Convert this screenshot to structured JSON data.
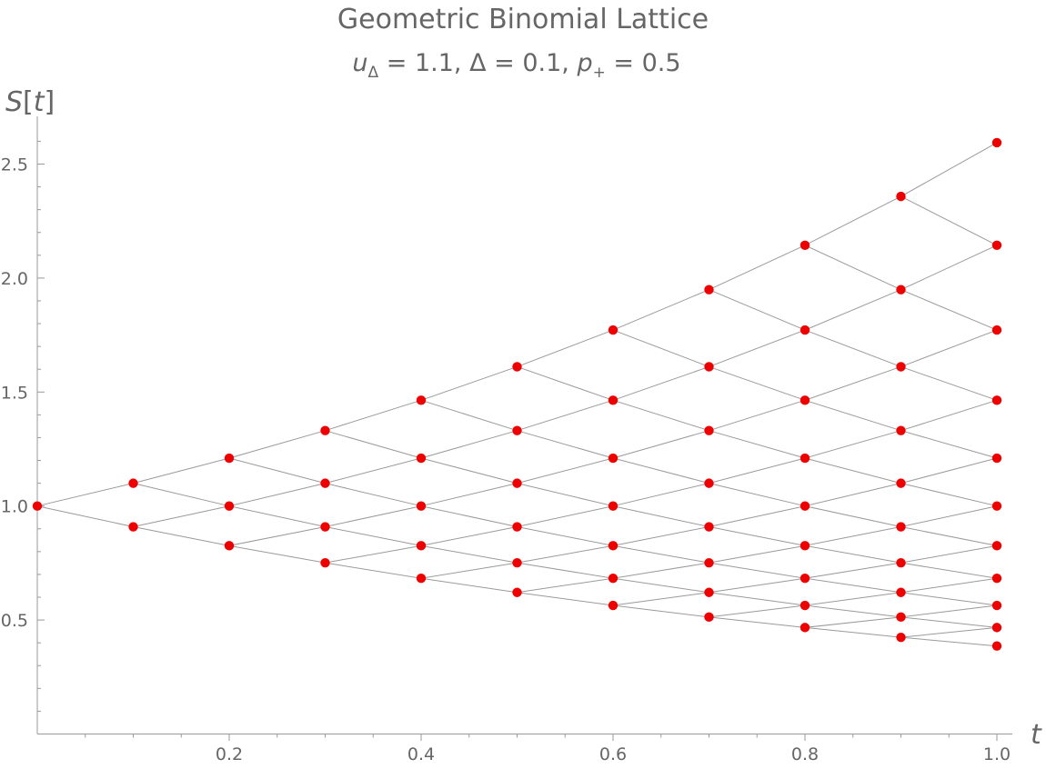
{
  "chart_data": {
    "type": "scatter",
    "title": "Geometric Binomial Lattice",
    "subtitle": {
      "u_base": "u",
      "u_sub": "Δ",
      "u_value": " = 1.1, Δ = 0.1, ",
      "p_base": "p",
      "p_sub": "+",
      "p_value": " = 0.5"
    },
    "ylabel": {
      "func": "S",
      "open": "[",
      "arg": "t",
      "close": "]"
    },
    "xlabel": "t",
    "xlim": [
      0,
      1.0
    ],
    "ylim": [
      0,
      2.6
    ],
    "x_ticks": [
      "0.2",
      "0.4",
      "0.6",
      "0.8",
      "1.0"
    ],
    "y_ticks": [
      "0.5",
      "1.0",
      "1.5",
      "2.0",
      "2.5"
    ],
    "lattice": {
      "u": 1.1,
      "d": 0.9091,
      "dt": 0.1,
      "steps": 10,
      "S0": 1.0
    },
    "series": [
      {
        "x": 0.0,
        "values": [
          1.0
        ]
      },
      {
        "x": 0.1,
        "values": [
          1.1,
          0.909
        ]
      },
      {
        "x": 0.2,
        "values": [
          1.21,
          1.0,
          0.826
        ]
      },
      {
        "x": 0.3,
        "values": [
          1.331,
          1.1,
          0.909,
          0.751
        ]
      },
      {
        "x": 0.4,
        "values": [
          1.464,
          1.21,
          1.0,
          0.826,
          0.683
        ]
      },
      {
        "x": 0.5,
        "values": [
          1.611,
          1.331,
          1.1,
          0.909,
          0.751,
          0.621
        ]
      },
      {
        "x": 0.6,
        "values": [
          1.772,
          1.464,
          1.21,
          1.0,
          0.826,
          0.683,
          0.564
        ]
      },
      {
        "x": 0.7,
        "values": [
          1.949,
          1.611,
          1.331,
          1.1,
          0.909,
          0.751,
          0.621,
          0.513
        ]
      },
      {
        "x": 0.8,
        "values": [
          2.144,
          1.772,
          1.464,
          1.21,
          1.0,
          0.826,
          0.683,
          0.564,
          0.467
        ]
      },
      {
        "x": 0.9,
        "values": [
          2.358,
          1.949,
          1.611,
          1.331,
          1.1,
          0.909,
          0.751,
          0.621,
          0.513,
          0.424
        ]
      },
      {
        "x": 1.0,
        "values": [
          2.594,
          2.144,
          1.772,
          1.464,
          1.21,
          1.0,
          0.826,
          0.683,
          0.564,
          0.467,
          0.386
        ]
      }
    ],
    "colors": {
      "points": "#ee0000",
      "edges": "#9a9a9a",
      "text": "#666666"
    },
    "grid": false,
    "legend": "none"
  }
}
